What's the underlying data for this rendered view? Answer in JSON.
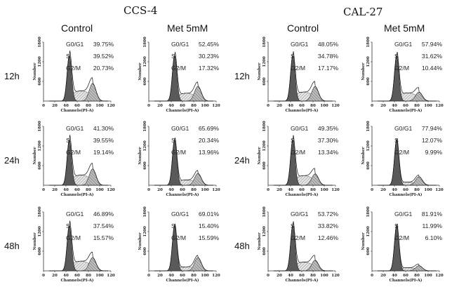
{
  "figure": {
    "cell_lines": [
      "CCS-4",
      "CAL-27"
    ],
    "conditions": [
      "Control",
      "Met 5mM"
    ],
    "timepoints": [
      "12h",
      "24h",
      "48h"
    ]
  },
  "chart_data": {
    "type": "histogram",
    "xlabel": "Channels(PI-A)",
    "ylabel": "Number",
    "xlim": [
      0,
      120
    ],
    "ylim": [
      0,
      1800
    ],
    "x_ticks": [
      "0",
      "20",
      "40",
      "60",
      "80",
      "100",
      "120"
    ],
    "y_ticks": [
      "600",
      "1200",
      "1800"
    ],
    "stat_labels": {
      "g0g1": "G0/G1",
      "s": "S",
      "g2m": "G2/M"
    },
    "panels": [
      {
        "cell_line": "CCS-4",
        "condition": "Control",
        "time": "12h",
        "g0g1": "39.75%",
        "s": "39.52%",
        "g2m": "20.73%"
      },
      {
        "cell_line": "CCS-4",
        "condition": "Met 5mM",
        "time": "12h",
        "g0g1": "52.45%",
        "s": "30.23%",
        "g2m": "17.32%"
      },
      {
        "cell_line": "CAL-27",
        "condition": "Control",
        "time": "12h",
        "g0g1": "48.05%",
        "s": "34.78%",
        "g2m": "17.17%"
      },
      {
        "cell_line": "CAL-27",
        "condition": "Met 5mM",
        "time": "12h",
        "g0g1": "57.94%",
        "s": "31.62%",
        "g2m": "10.44%"
      },
      {
        "cell_line": "CCS-4",
        "condition": "Control",
        "time": "24h",
        "g0g1": "41.30%",
        "s": "39.55%",
        "g2m": "19.14%"
      },
      {
        "cell_line": "CCS-4",
        "condition": "Met 5mM",
        "time": "24h",
        "g0g1": "65.69%",
        "s": "20.34%",
        "g2m": "13.96%"
      },
      {
        "cell_line": "CAL-27",
        "condition": "Control",
        "time": "24h",
        "g0g1": "49.35%",
        "s": "37.30%",
        "g2m": "13.34%"
      },
      {
        "cell_line": "CAL-27",
        "condition": "Met 5mM",
        "time": "24h",
        "g0g1": "77.94%",
        "s": "12.07%",
        "g2m": "9.99%"
      },
      {
        "cell_line": "CCS-4",
        "condition": "Control",
        "time": "48h",
        "g0g1": "46.89%",
        "s": "37.54%",
        "g2m": "15.57%"
      },
      {
        "cell_line": "CCS-4",
        "condition": "Met 5mM",
        "time": "48h",
        "g0g1": "69.01%",
        "s": "15.40%",
        "g2m": "15.59%"
      },
      {
        "cell_line": "CAL-27",
        "condition": "Control",
        "time": "48h",
        "g0g1": "53.72%",
        "s": "33.82%",
        "g2m": "12.46%"
      },
      {
        "cell_line": "CAL-27",
        "condition": "Met 5mM",
        "time": "48h",
        "g0g1": "81.91%",
        "s": "11.99%",
        "g2m": "6.10%"
      }
    ]
  }
}
